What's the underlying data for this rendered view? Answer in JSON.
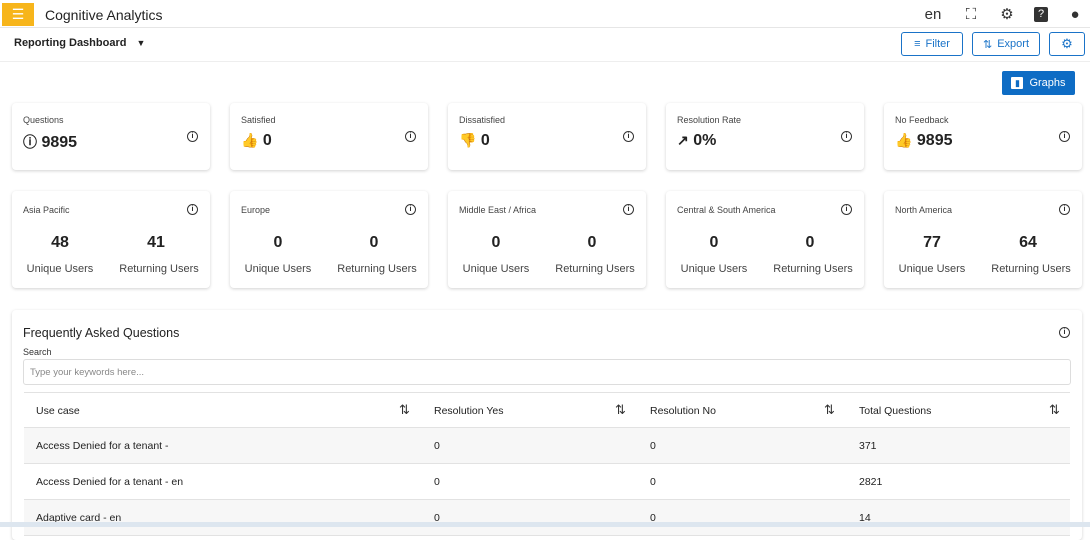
{
  "header": {
    "title": "Cognitive Analytics",
    "language": "en"
  },
  "subbar": {
    "dashboard": "Reporting Dashboard",
    "filter": "Filter",
    "export": "Export",
    "graphs": "Graphs"
  },
  "stats": [
    {
      "label": "Questions",
      "value": "9895",
      "icon": "question-circle-icon"
    },
    {
      "label": "Satisfied",
      "value": "0",
      "icon": "thumbs-up-icon"
    },
    {
      "label": "Dissatisfied",
      "value": "0",
      "icon": "thumbs-down-icon"
    },
    {
      "label": "Resolution Rate",
      "value": "0%",
      "icon": "trending-up-icon"
    },
    {
      "label": "No Feedback",
      "value": "9895",
      "icon": "thumbs-mixed-icon"
    }
  ],
  "regions": [
    {
      "name": "Asia Pacific",
      "unique": "48",
      "returning": "41"
    },
    {
      "name": "Europe",
      "unique": "0",
      "returning": "0"
    },
    {
      "name": "Middle East / Africa",
      "unique": "0",
      "returning": "0"
    },
    {
      "name": "Central & South America",
      "unique": "0",
      "returning": "0"
    },
    {
      "name": "North America",
      "unique": "77",
      "returning": "64"
    }
  ],
  "region_labels": {
    "unique": "Unique Users",
    "returning": "Returning Users"
  },
  "faq": {
    "title": "Frequently Asked Questions",
    "search_label": "Search",
    "search_placeholder": "Type your keywords here...",
    "columns": [
      "Use case",
      "Resolution Yes",
      "Resolution No",
      "Total Questions"
    ],
    "rows": [
      [
        "Access Denied for a tenant -",
        "0",
        "0",
        "371"
      ],
      [
        "Access Denied for a tenant - en",
        "0",
        "0",
        "2821"
      ],
      [
        "Adaptive card - en",
        "0",
        "0",
        "14"
      ]
    ]
  }
}
